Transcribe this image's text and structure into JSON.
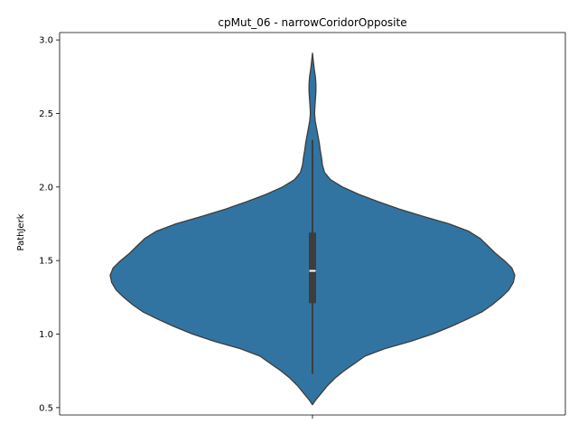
{
  "chart_data": {
    "type": "violin",
    "title": "cpMut_06 - narrowCoridorOpposite",
    "xlabel": "",
    "ylabel": "PathJerk",
    "ylim": [
      0.45,
      3.05
    ],
    "yticks": [
      0.5,
      1.0,
      1.5,
      2.0,
      2.5,
      3.0
    ],
    "ytick_labels": [
      "0.5",
      "1.0",
      "1.5",
      "2.0",
      "2.5",
      "3.0"
    ],
    "categories": [
      ""
    ],
    "grid": false,
    "colors": {
      "violin_fill": "#3274a1",
      "violin_edge": "#3d3d3d",
      "box": "#3d3d3d",
      "median": "#ffffff"
    },
    "distribution": {
      "min": 0.52,
      "max": 2.91,
      "whisker_low": 0.73,
      "whisker_high": 2.32,
      "q1": 1.21,
      "median": 1.43,
      "q3": 1.69,
      "density_profile": [
        [
          0.52,
          0.0
        ],
        [
          0.55,
          0.02
        ],
        [
          0.6,
          0.06
        ],
        [
          0.65,
          0.1
        ],
        [
          0.7,
          0.15
        ],
        [
          0.75,
          0.21
        ],
        [
          0.8,
          0.28
        ],
        [
          0.85,
          0.35
        ],
        [
          0.9,
          0.48
        ],
        [
          0.95,
          0.65
        ],
        [
          1.0,
          0.8
        ],
        [
          1.05,
          0.92
        ],
        [
          1.1,
          1.03
        ],
        [
          1.15,
          1.13
        ],
        [
          1.2,
          1.2
        ],
        [
          1.25,
          1.26
        ],
        [
          1.3,
          1.31
        ],
        [
          1.35,
          1.34
        ],
        [
          1.4,
          1.35
        ],
        [
          1.45,
          1.33
        ],
        [
          1.5,
          1.28
        ],
        [
          1.55,
          1.22
        ],
        [
          1.6,
          1.17
        ],
        [
          1.65,
          1.12
        ],
        [
          1.7,
          1.04
        ],
        [
          1.75,
          0.91
        ],
        [
          1.8,
          0.74
        ],
        [
          1.85,
          0.58
        ],
        [
          1.9,
          0.44
        ],
        [
          1.95,
          0.31
        ],
        [
          2.0,
          0.2
        ],
        [
          2.05,
          0.12
        ],
        [
          2.1,
          0.08
        ],
        [
          2.15,
          0.066
        ],
        [
          2.2,
          0.06
        ],
        [
          2.25,
          0.052
        ],
        [
          2.3,
          0.045
        ],
        [
          2.35,
          0.036
        ],
        [
          2.4,
          0.027
        ],
        [
          2.45,
          0.018
        ],
        [
          2.5,
          0.014
        ],
        [
          2.55,
          0.016
        ],
        [
          2.6,
          0.02
        ],
        [
          2.65,
          0.023
        ],
        [
          2.7,
          0.023
        ],
        [
          2.75,
          0.019
        ],
        [
          2.8,
          0.012
        ],
        [
          2.85,
          0.006
        ],
        [
          2.91,
          0.0
        ]
      ]
    }
  }
}
